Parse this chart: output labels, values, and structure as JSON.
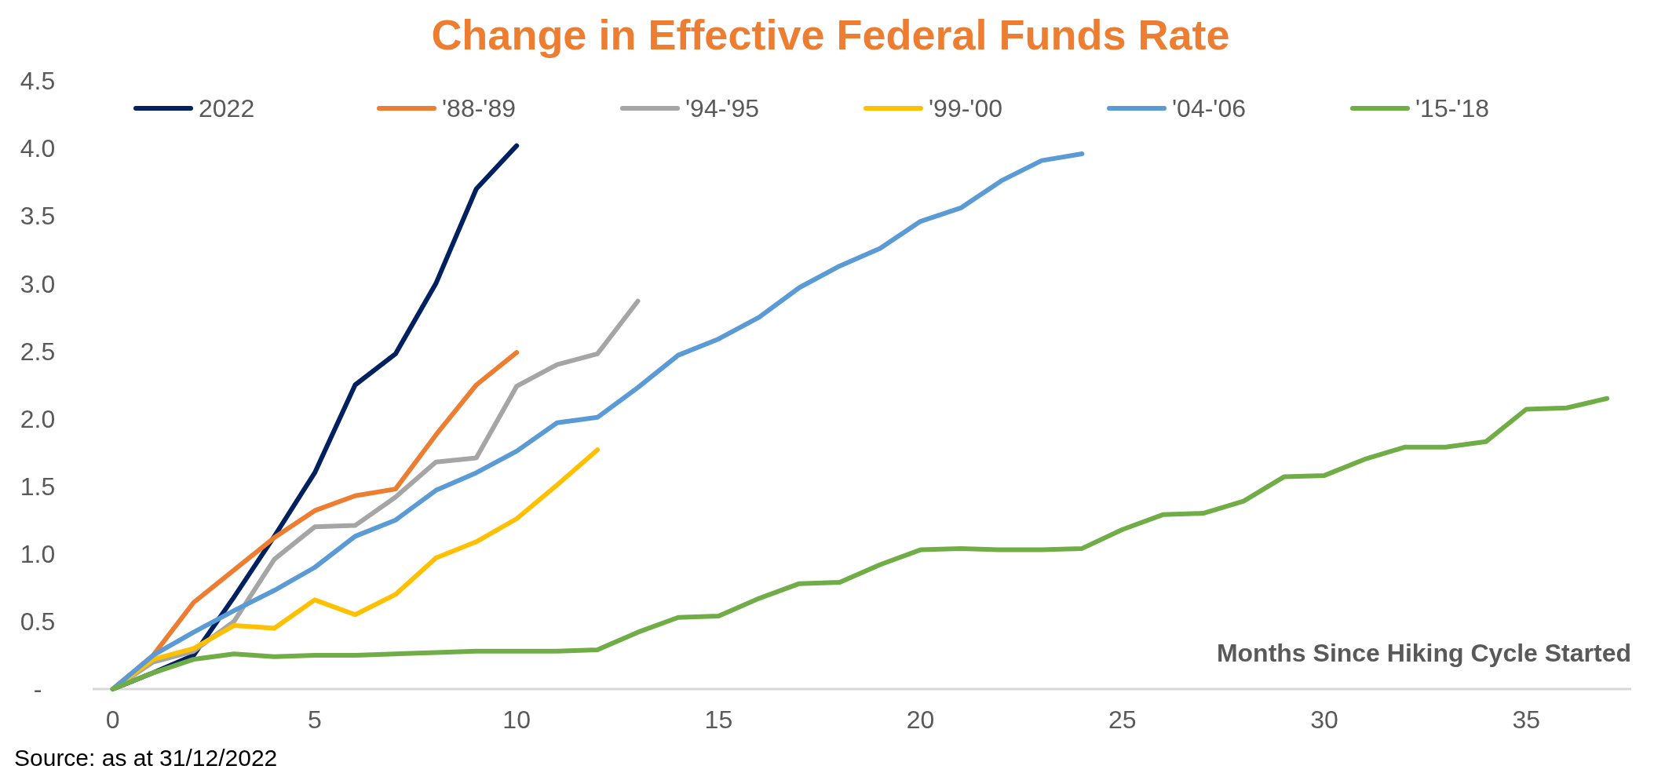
{
  "chart_data": {
    "type": "line",
    "title": "Change in Effective Federal Funds Rate",
    "xlabel": "Months Since Hiking Cycle Started",
    "annotations": [
      "Source: as at 31/12/2022"
    ],
    "xlim": [
      -0.5,
      37.6
    ],
    "xticks": [
      0,
      5,
      10,
      15,
      20,
      25,
      30,
      35
    ],
    "ylim": [
      0,
      4.5
    ],
    "yticks": [
      {
        "value": 0,
        "label": "-"
      },
      {
        "value": 0.5,
        "label": "0.5"
      },
      {
        "value": 1,
        "label": "1.0"
      },
      {
        "value": 1.5,
        "label": "1.5"
      },
      {
        "value": 2,
        "label": "2.0"
      },
      {
        "value": 2.5,
        "label": "2.5"
      },
      {
        "value": 3,
        "label": "3.0"
      },
      {
        "value": 3.5,
        "label": "3.5"
      },
      {
        "value": 4,
        "label": "4.0"
      },
      {
        "value": 4.5,
        "label": "4.5"
      }
    ],
    "legend": "top",
    "grid": false,
    "marker": "none",
    "line_style": "solid",
    "series": [
      {
        "name": "2022",
        "color": "#002060",
        "x": [
          0,
          1,
          2,
          3,
          4,
          5,
          6,
          7,
          8,
          9,
          10
        ],
        "values": [
          0,
          0.12,
          0.25,
          0.68,
          1.13,
          1.6,
          2.25,
          2.48,
          3.0,
          3.7,
          4.02
        ]
      },
      {
        "name": "'88-'89",
        "color": "#ed7d31",
        "x": [
          0,
          1,
          2,
          3,
          4,
          5,
          6,
          7,
          8,
          9,
          10
        ],
        "values": [
          0,
          0.25,
          0.64,
          0.88,
          1.12,
          1.32,
          1.43,
          1.48,
          1.88,
          2.25,
          2.49
        ]
      },
      {
        "name": "'94-'95",
        "color": "#a5a5a5",
        "x": [
          0,
          1,
          2,
          3,
          4,
          5,
          6,
          7,
          8,
          9,
          10,
          11,
          12,
          13
        ],
        "values": [
          0,
          0.2,
          0.28,
          0.5,
          0.96,
          1.2,
          1.21,
          1.42,
          1.68,
          1.71,
          2.24,
          2.4,
          2.48,
          2.87
        ]
      },
      {
        "name": "'99-'00",
        "color": "#ffc000",
        "x": [
          0,
          1,
          2,
          3,
          4,
          5,
          6,
          7,
          8,
          9,
          10,
          11,
          12
        ],
        "values": [
          0,
          0.22,
          0.3,
          0.47,
          0.45,
          0.66,
          0.55,
          0.7,
          0.97,
          1.09,
          1.26,
          1.51,
          1.77
        ]
      },
      {
        "name": "'04-'06",
        "color": "#5b9bd5",
        "x": [
          0,
          1,
          2,
          3,
          4,
          5,
          6,
          7,
          8,
          9,
          10,
          11,
          12,
          13,
          14,
          15,
          16,
          17,
          18,
          19,
          20,
          21,
          22,
          23,
          24
        ],
        "values": [
          0,
          0.25,
          0.42,
          0.58,
          0.73,
          0.9,
          1.13,
          1.25,
          1.47,
          1.6,
          1.76,
          1.97,
          2.01,
          2.23,
          2.47,
          2.59,
          2.75,
          2.97,
          3.13,
          3.26,
          3.46,
          3.56,
          3.76,
          3.91,
          3.96
        ]
      },
      {
        "name": "'15-'18",
        "color": "#70ad47",
        "x": [
          0,
          1,
          2,
          3,
          4,
          5,
          6,
          7,
          8,
          9,
          10,
          11,
          12,
          13,
          14,
          15,
          16,
          17,
          18,
          19,
          20,
          21,
          22,
          23,
          24,
          25,
          26,
          27,
          28,
          29,
          30,
          31,
          32,
          33,
          34,
          35,
          36,
          37
        ],
        "values": [
          0,
          0.12,
          0.22,
          0.26,
          0.24,
          0.25,
          0.25,
          0.26,
          0.27,
          0.28,
          0.28,
          0.28,
          0.29,
          0.42,
          0.53,
          0.54,
          0.67,
          0.78,
          0.79,
          0.92,
          1.03,
          1.04,
          1.03,
          1.03,
          1.04,
          1.18,
          1.29,
          1.3,
          1.39,
          1.57,
          1.58,
          1.7,
          1.79,
          1.79,
          1.83,
          2.07,
          2.08,
          2.15
        ]
      }
    ]
  }
}
